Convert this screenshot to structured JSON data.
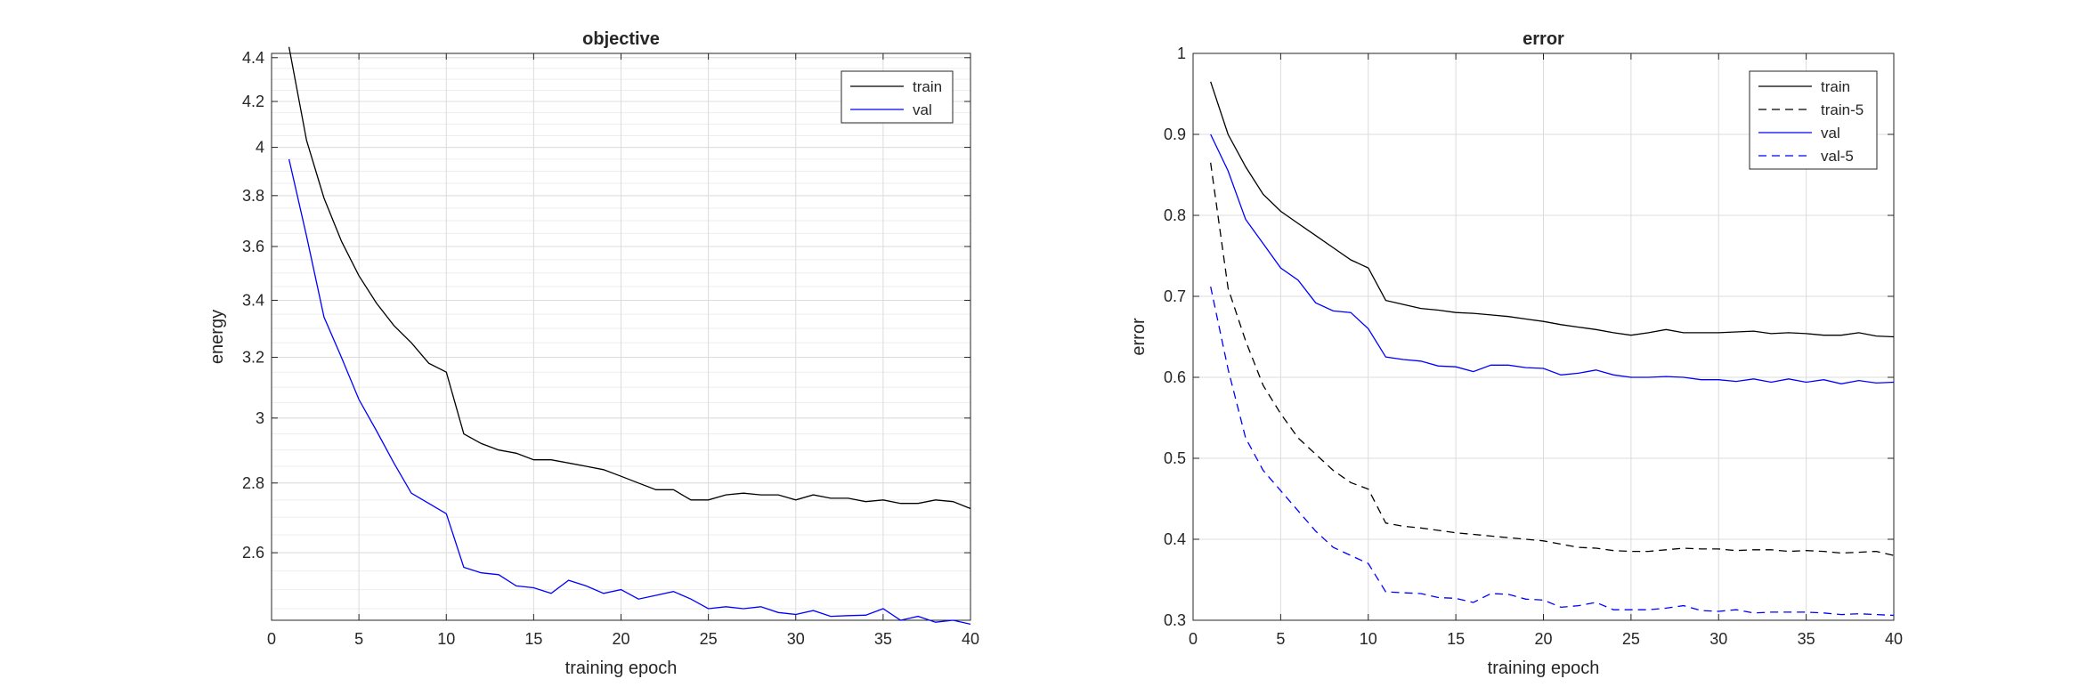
{
  "chart_data": [
    {
      "type": "line",
      "title": "objective",
      "xlabel": "training epoch",
      "ylabel": "energy",
      "xlim": [
        0,
        40
      ],
      "ylim": [
        2.42,
        4.42
      ],
      "yscale": "log",
      "xticks": [
        0,
        5,
        10,
        15,
        20,
        25,
        30,
        35,
        40
      ],
      "yticks": [
        2.6,
        2.8,
        3,
        3.2,
        3.4,
        3.6,
        3.8,
        4,
        4.2,
        4.4
      ],
      "ytick_labels": [
        "2.6",
        "2.8",
        "3",
        "3.2",
        "3.4",
        "3.6",
        "3.8",
        "4",
        "4.2",
        "4.4"
      ],
      "grid": true,
      "legend": "top-right",
      "x": [
        1,
        2,
        3,
        4,
        5,
        6,
        7,
        8,
        9,
        10,
        11,
        12,
        13,
        14,
        15,
        16,
        17,
        18,
        19,
        20,
        21,
        22,
        23,
        24,
        25,
        26,
        27,
        28,
        29,
        30,
        31,
        32,
        33,
        34,
        35,
        36,
        37,
        38,
        39,
        40
      ],
      "series": [
        {
          "name": "train",
          "color": "#000000",
          "dash": "solid",
          "values": [
            4.45,
            4.03,
            3.79,
            3.62,
            3.49,
            3.39,
            3.31,
            3.25,
            3.18,
            3.15,
            2.95,
            2.92,
            2.9,
            2.89,
            2.87,
            2.87,
            2.86,
            2.85,
            2.84,
            2.82,
            2.8,
            2.78,
            2.78,
            2.75,
            2.75,
            2.765,
            2.77,
            2.765,
            2.765,
            2.75,
            2.765,
            2.755,
            2.755,
            2.745,
            2.75,
            2.74,
            2.74,
            2.75,
            2.745,
            2.725
          ]
        },
        {
          "name": "val",
          "color": "#0000ff",
          "dash": "solid",
          "values": [
            3.95,
            3.64,
            3.34,
            3.2,
            3.06,
            2.96,
            2.86,
            2.77,
            2.74,
            2.71,
            2.56,
            2.545,
            2.54,
            2.51,
            2.505,
            2.49,
            2.525,
            2.51,
            2.49,
            2.5,
            2.475,
            2.485,
            2.495,
            2.475,
            2.45,
            2.455,
            2.45,
            2.455,
            2.44,
            2.435,
            2.445,
            2.43,
            2.432,
            2.433,
            2.45,
            2.42,
            2.43,
            2.415,
            2.42,
            2.41
          ]
        }
      ]
    },
    {
      "type": "line",
      "title": "error",
      "xlabel": "training epoch",
      "ylabel": "error",
      "xlim": [
        0,
        40
      ],
      "ylim": [
        0.3,
        1
      ],
      "xticks": [
        0,
        5,
        10,
        15,
        20,
        25,
        30,
        35,
        40
      ],
      "yticks": [
        0.3,
        0.4,
        0.5,
        0.6,
        0.7,
        0.8,
        0.9,
        1
      ],
      "ytick_labels": [
        "0.3",
        "0.4",
        "0.5",
        "0.6",
        "0.7",
        "0.8",
        "0.9",
        "1"
      ],
      "grid": true,
      "legend": "top-right",
      "x": [
        1,
        2,
        3,
        4,
        5,
        6,
        7,
        8,
        9,
        10,
        11,
        12,
        13,
        14,
        15,
        16,
        17,
        18,
        19,
        20,
        21,
        22,
        23,
        24,
        25,
        26,
        27,
        28,
        29,
        30,
        31,
        32,
        33,
        34,
        35,
        36,
        37,
        38,
        39,
        40
      ],
      "series": [
        {
          "name": "train",
          "color": "#000000",
          "dash": "solid",
          "values": [
            0.965,
            0.9,
            0.86,
            0.826,
            0.805,
            0.79,
            0.775,
            0.76,
            0.745,
            0.735,
            0.695,
            0.69,
            0.685,
            0.683,
            0.68,
            0.679,
            0.677,
            0.675,
            0.672,
            0.669,
            0.665,
            0.662,
            0.659,
            0.655,
            0.652,
            0.655,
            0.659,
            0.655,
            0.655,
            0.655,
            0.656,
            0.657,
            0.654,
            0.655,
            0.654,
            0.652,
            0.652,
            0.655,
            0.651,
            0.65
          ]
        },
        {
          "name": "train-5",
          "color": "#000000",
          "dash": "dashed",
          "values": [
            0.865,
            0.71,
            0.645,
            0.59,
            0.555,
            0.525,
            0.505,
            0.485,
            0.47,
            0.462,
            0.42,
            0.416,
            0.414,
            0.411,
            0.408,
            0.406,
            0.404,
            0.402,
            0.4,
            0.398,
            0.394,
            0.39,
            0.389,
            0.386,
            0.385,
            0.385,
            0.387,
            0.389,
            0.388,
            0.388,
            0.386,
            0.387,
            0.387,
            0.385,
            0.386,
            0.385,
            0.383,
            0.384,
            0.385,
            0.38
          ]
        },
        {
          "name": "val",
          "color": "#0000ff",
          "dash": "solid",
          "values": [
            0.9,
            0.855,
            0.795,
            0.765,
            0.735,
            0.72,
            0.692,
            0.682,
            0.68,
            0.66,
            0.625,
            0.622,
            0.62,
            0.614,
            0.613,
            0.607,
            0.615,
            0.615,
            0.612,
            0.611,
            0.603,
            0.605,
            0.609,
            0.603,
            0.6,
            0.6,
            0.601,
            0.6,
            0.597,
            0.597,
            0.595,
            0.598,
            0.594,
            0.598,
            0.594,
            0.597,
            0.592,
            0.596,
            0.593,
            0.594
          ]
        },
        {
          "name": "val-5",
          "color": "#0000ff",
          "dash": "dashed",
          "values": [
            0.712,
            0.61,
            0.525,
            0.485,
            0.46,
            0.435,
            0.41,
            0.39,
            0.38,
            0.37,
            0.335,
            0.334,
            0.333,
            0.328,
            0.327,
            0.322,
            0.333,
            0.332,
            0.326,
            0.325,
            0.316,
            0.318,
            0.322,
            0.313,
            0.313,
            0.313,
            0.315,
            0.318,
            0.312,
            0.311,
            0.313,
            0.309,
            0.31,
            0.31,
            0.31,
            0.309,
            0.307,
            0.308,
            0.307,
            0.306
          ]
        }
      ]
    }
  ]
}
